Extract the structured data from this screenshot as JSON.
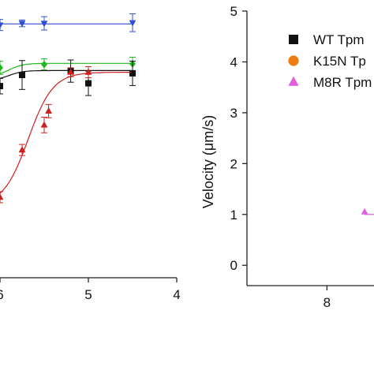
{
  "chart_data": [
    {
      "type": "scatter",
      "title": "",
      "xlabel": "",
      "ylabel": "",
      "x_reversed": true,
      "xlim": [
        6,
        4
      ],
      "x_ticks": [
        "6",
        "5",
        "4"
      ],
      "x_tick_values": [
        6,
        5,
        4
      ],
      "ylim": [
        0,
        5
      ],
      "grid": false,
      "series": [
        {
          "color": "#2e4fd6",
          "marker": "triangle-down",
          "points": [
            [
              6.0,
              4.55
            ],
            [
              5.75,
              4.58
            ],
            [
              5.5,
              4.58
            ],
            [
              4.5,
              4.59
            ]
          ],
          "errors": [
            0.1,
            0.06,
            0.12,
            0.16
          ],
          "fit": [
            4.57,
            4.57
          ]
        },
        {
          "color": "#1fb81f",
          "marker": "diamond",
          "points": [
            [
              6.0,
              3.78
            ],
            [
              5.5,
              3.84
            ],
            [
              4.5,
              3.85
            ]
          ],
          "errors": [
            0.12,
            0.1,
            0.12
          ],
          "fit": [
            3.62,
            3.86
          ]
        },
        {
          "color": "#111111",
          "marker": "square",
          "points": [
            [
              6.0,
              3.45
            ],
            [
              5.75,
              3.65
            ],
            [
              5.2,
              3.72
            ],
            [
              5.0,
              3.5
            ],
            [
              4.5,
              3.68
            ]
          ],
          "errors": [
            0.14,
            0.26,
            0.2,
            0.22,
            0.22
          ],
          "fit": [
            3.55,
            3.73
          ]
        },
        {
          "color": "#cc1f1f",
          "marker": "triangle-up",
          "points": [
            [
              6.0,
              1.45
            ],
            [
              5.75,
              2.3
            ],
            [
              5.5,
              2.75
            ],
            [
              5.45,
              3.0
            ],
            [
              5.2,
              3.7
            ],
            [
              5.0,
              3.7
            ]
          ],
          "errors": [
            0.1,
            0.1,
            0.14,
            0.12,
            0.08,
            0.1
          ],
          "fit": [
            1.3,
            3.7
          ]
        }
      ]
    },
    {
      "type": "scatter",
      "title": "",
      "xlabel": "",
      "ylabel": "Velocity (μm/s)",
      "x_reversed": true,
      "xlim": [
        8.85,
        7.5
      ],
      "x_ticks": [
        "8"
      ],
      "x_tick_values": [
        8
      ],
      "ylim": [
        -0.4,
        5
      ],
      "y_ticks": [
        "0",
        "1",
        "2",
        "3",
        "4",
        "5"
      ],
      "y_tick_values": [
        0,
        1,
        2,
        3,
        4,
        5
      ],
      "grid": false,
      "legend_position": "top-right",
      "legend": [
        {
          "label": "WT Tpm",
          "color": "#111111",
          "marker": "square"
        },
        {
          "label": "K15N Tp",
          "color": "#f07a12",
          "marker": "circle"
        },
        {
          "label": "M8R Tpm",
          "color": "#e05ce0",
          "marker": "triangle-up"
        }
      ],
      "series": [
        {
          "name": "M8R Tpm",
          "color": "#e05ce0",
          "marker": "triangle-up",
          "points": [
            [
              7.6,
              1.05
            ]
          ],
          "line": [
            [
              7.6,
              1.0
            ],
            [
              7.5,
              1.0
            ]
          ]
        }
      ]
    }
  ]
}
